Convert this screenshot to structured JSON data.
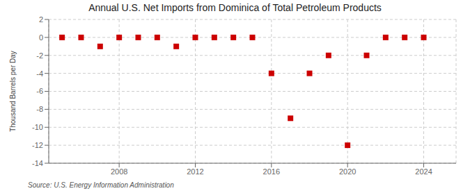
{
  "chart_data": {
    "type": "scatter",
    "title": "Annual U.S. Net Imports from Dominica of Total Petroleum Products",
    "y_label": "Thousand Barrels per Day",
    "annotation": "Source: U.S. Energy Information Administration",
    "x": [
      2005,
      2006,
      2007,
      2008,
      2009,
      2010,
      2011,
      2012,
      2013,
      2014,
      2015,
      2016,
      2017,
      2018,
      2019,
      2020,
      2021,
      2022,
      2023,
      2024
    ],
    "values": [
      0,
      0,
      -1,
      0,
      0,
      0,
      -1,
      0,
      0,
      0,
      0,
      -4,
      -9,
      -4,
      -2,
      -12,
      -2,
      0,
      0,
      0
    ],
    "color": "#cc0000",
    "marker": "square",
    "xlim": [
      2004.3,
      2025.7
    ],
    "xticks": [
      2008,
      2012,
      2016,
      2020,
      2024
    ],
    "ylim": [
      -14,
      2
    ],
    "yticks": [
      2,
      0,
      -2,
      -4,
      -6,
      -8,
      -10,
      -12,
      -14
    ],
    "grid": true
  }
}
